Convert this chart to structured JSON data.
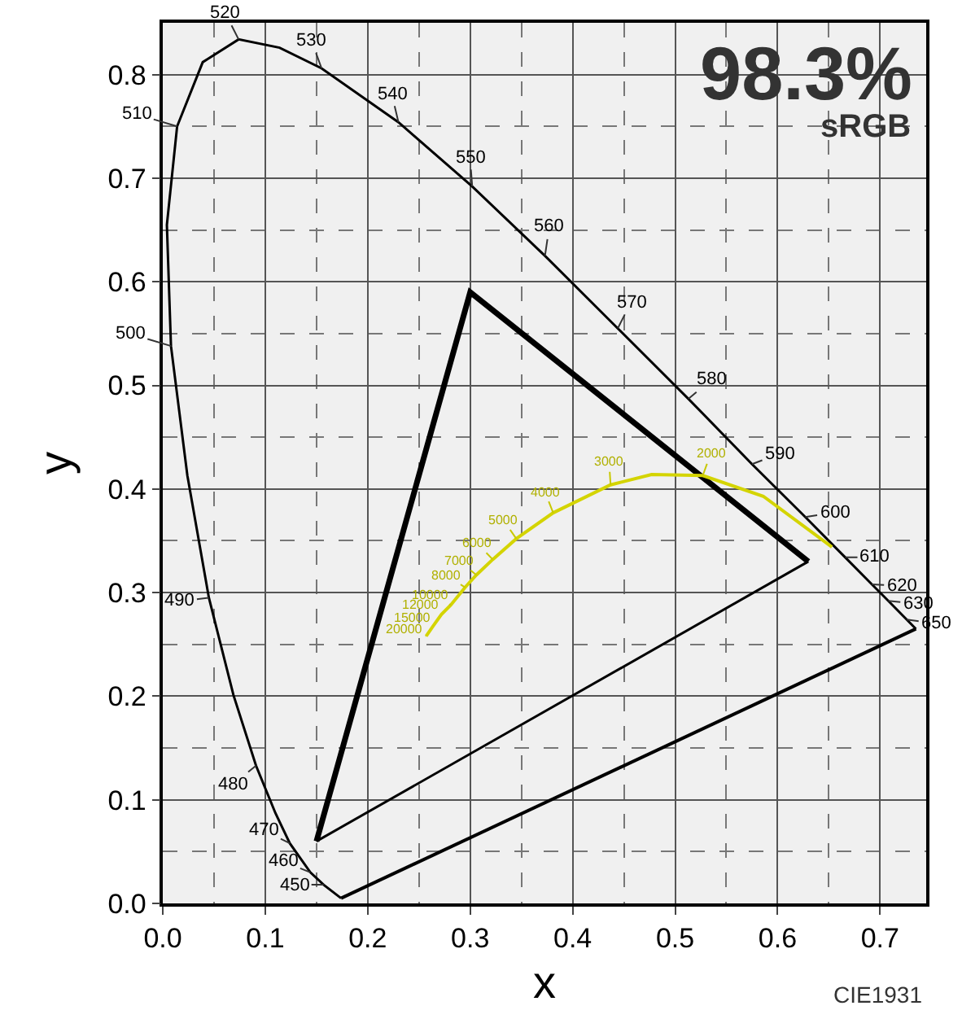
{
  "chart_data": {
    "type": "line",
    "xlabel": "x",
    "ylabel": "y",
    "xlim": [
      0,
      0.745
    ],
    "ylim": [
      0,
      0.85
    ],
    "xticks": [
      {
        "value": 0,
        "label": "0.0"
      },
      0.1,
      0.2,
      0.3,
      0.4,
      0.5,
      0.6,
      0.7
    ],
    "yticks": [
      {
        "value": 0,
        "label": "0.0"
      },
      0.1,
      0.2,
      0.3,
      0.4,
      0.5,
      0.6,
      0.7,
      0.8
    ],
    "grid": true,
    "marker": "none",
    "line_style": "solid",
    "series": [
      {
        "color": "#000000",
        "x": [
          0.174,
          0.157,
          0.144,
          0.124,
          0.11,
          0.091,
          0.069,
          0.045,
          0.024,
          0.008,
          0.004,
          0.014,
          0.039,
          0.074,
          0.114,
          0.155,
          0.23,
          0.302,
          0.373,
          0.444,
          0.513,
          0.575,
          0.627,
          0.666,
          0.692,
          0.708,
          0.726,
          0.735
        ],
        "values": [
          0.005,
          0.018,
          0.03,
          0.058,
          0.087,
          0.133,
          0.201,
          0.295,
          0.413,
          0.538,
          0.655,
          0.75,
          0.812,
          0.834,
          0.826,
          0.806,
          0.754,
          0.692,
          0.625,
          0.555,
          0.487,
          0.424,
          0.373,
          0.334,
          0.308,
          0.292,
          0.274,
          0.265
        ]
      },
      {
        "color": "#000000",
        "x": [
          0.63,
          0.3,
          0.15
        ],
        "values": [
          0.33,
          0.59,
          0.06
        ]
      },
      {
        "color": "#000000",
        "x": [
          0.174,
          0.735
        ],
        "values": [
          0.005,
          0.265
        ]
      },
      {
        "color": "#000000",
        "x": [
          0.15,
          0.63
        ],
        "values": [
          0.06,
          0.33
        ]
      },
      {
        "color": "#d4d400",
        "x": [
          0.653,
          0.586,
          0.527,
          0.477,
          0.437,
          0.381,
          0.345,
          0.322,
          0.306,
          0.295,
          0.281,
          0.272,
          0.264,
          0.257
        ],
        "values": [
          0.344,
          0.393,
          0.413,
          0.414,
          0.404,
          0.377,
          0.352,
          0.332,
          0.317,
          0.305,
          0.288,
          0.279,
          0.268,
          0.258
        ]
      }
    ],
    "annotations": [
      "98.3%",
      "sRGB",
      "CIE1931",
      {
        "text": "450",
        "x": 0.157,
        "y": 0.018
      },
      {
        "text": "460",
        "x": 0.144,
        "y": 0.03
      },
      {
        "text": "470",
        "x": 0.124,
        "y": 0.058
      },
      {
        "text": "480",
        "x": 0.091,
        "y": 0.133
      },
      {
        "text": "490",
        "x": 0.045,
        "y": 0.295
      },
      {
        "text": "500",
        "x": 0.008,
        "y": 0.538
      },
      {
        "text": "510",
        "x": 0.014,
        "y": 0.75
      },
      {
        "text": "520",
        "x": 0.074,
        "y": 0.834
      },
      {
        "text": "530",
        "x": 0.155,
        "y": 0.806
      },
      {
        "text": "540",
        "x": 0.23,
        "y": 0.754
      },
      {
        "text": "550",
        "x": 0.302,
        "y": 0.692
      },
      {
        "text": "560",
        "x": 0.373,
        "y": 0.625
      },
      {
        "text": "570",
        "x": 0.444,
        "y": 0.555
      },
      {
        "text": "580",
        "x": 0.513,
        "y": 0.487
      },
      {
        "text": "590",
        "x": 0.575,
        "y": 0.424
      },
      {
        "text": "600",
        "x": 0.627,
        "y": 0.373
      },
      {
        "text": "610",
        "x": 0.666,
        "y": 0.334
      },
      {
        "text": "620",
        "x": 0.692,
        "y": 0.308
      },
      {
        "text": "630",
        "x": 0.708,
        "y": 0.292
      },
      {
        "text": "650",
        "x": 0.726,
        "y": 0.274
      },
      {
        "text": "2000",
        "x": 0.527,
        "y": 0.413
      },
      {
        "text": "3000",
        "x": 0.437,
        "y": 0.404
      },
      {
        "text": "4000",
        "x": 0.381,
        "y": 0.377
      },
      {
        "text": "5000",
        "x": 0.345,
        "y": 0.352
      },
      {
        "text": "6000",
        "x": 0.322,
        "y": 0.332
      },
      {
        "text": "7000",
        "x": 0.306,
        "y": 0.317
      },
      {
        "text": "8000",
        "x": 0.295,
        "y": 0.305
      },
      {
        "text": "10000",
        "x": 0.281,
        "y": 0.288
      },
      {
        "text": "12000",
        "x": 0.272,
        "y": 0.279
      },
      {
        "text": "15000",
        "x": 0.264,
        "y": 0.268
      },
      {
        "text": "20000",
        "x": 0.257,
        "y": 0.258
      }
    ]
  }
}
